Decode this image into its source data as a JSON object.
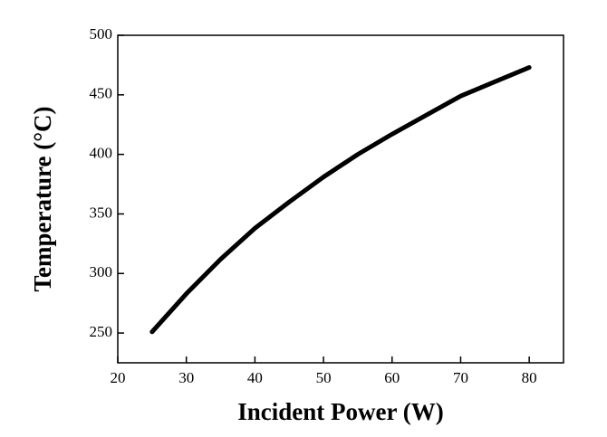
{
  "chart_data": {
    "type": "line",
    "x_label": "Incident Power (W)",
    "y_label": "Temperature (°C)",
    "x": [
      25,
      30,
      35,
      40,
      45,
      50,
      55,
      60,
      65,
      70,
      75,
      80
    ],
    "series": [
      {
        "name": "Temperature",
        "color": "#000000",
        "values": [
          251,
          283,
          312,
          338,
          360,
          381,
          400,
          417,
          433,
          449,
          461,
          473
        ]
      }
    ],
    "xlim": [
      20,
      85
    ],
    "xticks": [
      20,
      30,
      40,
      50,
      60,
      70,
      80
    ],
    "ylim": [
      225,
      500
    ],
    "yticks": [
      250,
      300,
      350,
      400,
      450,
      500
    ],
    "grid": false
  }
}
